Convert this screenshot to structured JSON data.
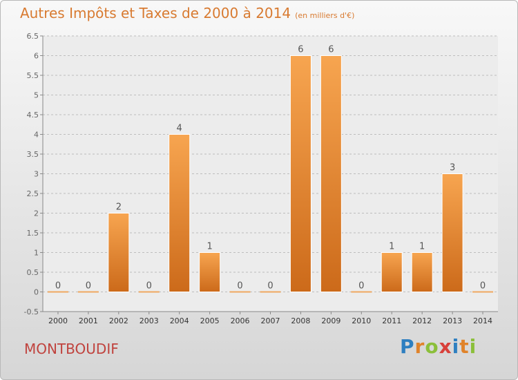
{
  "chart_data": {
    "type": "bar",
    "title": "Autres Impôts et Taxes de 2000 à 2014",
    "subtitle": "(en milliers d'€)",
    "categories": [
      "2000",
      "2001",
      "2002",
      "2003",
      "2004",
      "2005",
      "2006",
      "2007",
      "2008",
      "2009",
      "2010",
      "2011",
      "2012",
      "2013",
      "2014"
    ],
    "values": [
      0,
      0,
      2,
      0,
      4,
      1,
      0,
      0,
      6,
      6,
      0,
      1,
      1,
      3,
      0
    ],
    "ylim": [
      -0.5,
      6.5
    ],
    "yticks": [
      "-0.5",
      "0",
      "0.5",
      "1",
      "1.5",
      "2",
      "2.5",
      "3",
      "3.5",
      "4",
      "4.5",
      "5",
      "5.5",
      "6",
      "6.5"
    ],
    "grid": true,
    "bar_color": "#f0903a"
  },
  "commune": "MONTBOUDIF",
  "brand": "Proxiti"
}
